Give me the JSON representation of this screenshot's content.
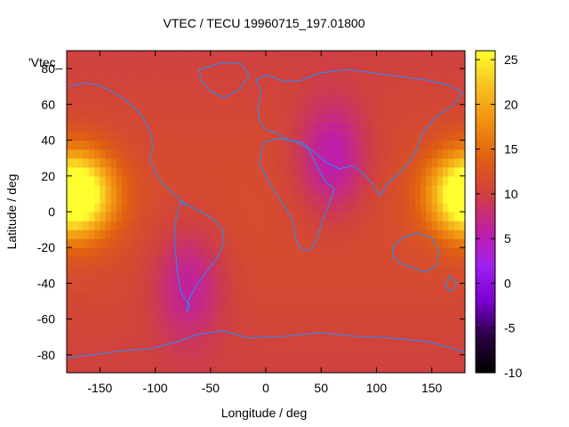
{
  "chart_data": {
    "type": "heatmap",
    "title": "VTEC / TECU 19960715_197.01800",
    "xlabel": "Longitude / deg",
    "ylabel": "Latitude / deg",
    "key_label": "'Vtec_",
    "xlim": [
      -180,
      180
    ],
    "ylim": [
      -90,
      90
    ],
    "x_ticks": [
      -150,
      -100,
      -50,
      0,
      50,
      100,
      150
    ],
    "y_ticks": [
      -80,
      -60,
      -40,
      -20,
      0,
      20,
      40,
      60,
      80
    ],
    "colorbar": {
      "range": [
        -10,
        26
      ],
      "ticks": [
        -10,
        -5,
        0,
        5,
        10,
        15,
        20,
        25
      ],
      "palette": [
        "#000000",
        "#2a0040",
        "#7a00d0",
        "#a020f0",
        "#c020a0",
        "#d04040",
        "#e06010",
        "#f09010",
        "#f8c020",
        "#ffff30"
      ]
    },
    "coastline_color": "#1e90ff",
    "field_description_values": {
      "background": 11,
      "equatorial_peaks": [
        {
          "lon": -165,
          "lat": 10,
          "value": 23
        },
        {
          "lon": 175,
          "lat": 10,
          "value": 23
        }
      ],
      "minima": [
        {
          "lon": 60,
          "lat": 30,
          "value": 5
        },
        {
          "lon": -70,
          "lat": -40,
          "value": 6
        }
      ]
    }
  }
}
